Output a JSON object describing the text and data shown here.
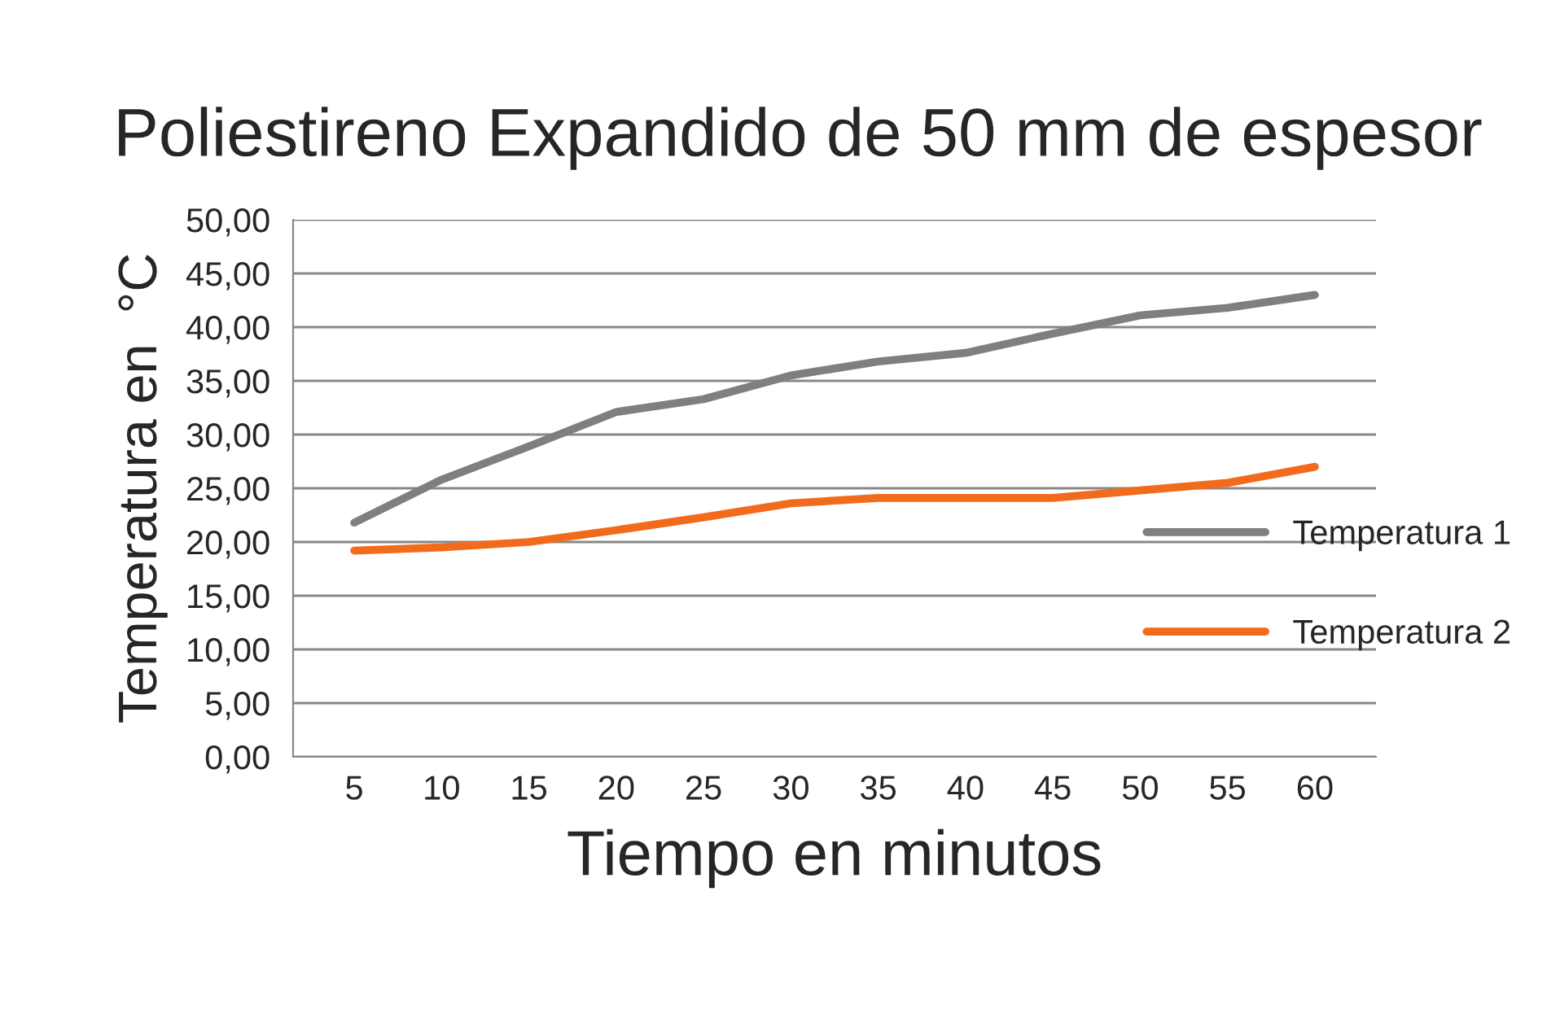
{
  "chart_data": {
    "type": "line",
    "title": "Poliestireno Expandido de 50 mm de espesor",
    "xlabel": "Tiempo en minutos",
    "ylabel": "Temperatura en  °C",
    "categories": [
      "5",
      "10",
      "15",
      "20",
      "25",
      "30",
      "35",
      "40",
      "45",
      "50",
      "55",
      "60"
    ],
    "series": [
      {
        "name": "Temperatura 1",
        "color": "#7f7f7f",
        "values": [
          21.8,
          25.8,
          28.9,
          32.1,
          33.3,
          35.5,
          36.8,
          37.6,
          39.4,
          41.1,
          41.8,
          43.0
        ]
      },
      {
        "name": "Temperatura 2",
        "color": "#f26b1d",
        "values": [
          19.2,
          19.5,
          20.0,
          21.1,
          22.3,
          23.6,
          24.1,
          24.1,
          24.1,
          24.8,
          25.5,
          27.0
        ]
      }
    ],
    "ylim": [
      0,
      50
    ],
    "yticks": [
      {
        "value": 0,
        "label": "0,00"
      },
      {
        "value": 5,
        "label": "5,00"
      },
      {
        "value": 10,
        "label": "10,00"
      },
      {
        "value": 15,
        "label": "15,00"
      },
      {
        "value": 20,
        "label": "20,00"
      },
      {
        "value": 25,
        "label": "25,00"
      },
      {
        "value": 30,
        "label": "30,00"
      },
      {
        "value": 35,
        "label": "35,00"
      },
      {
        "value": 40,
        "label": "40,00"
      },
      {
        "value": 45,
        "label": "45,00"
      },
      {
        "value": 50,
        "label": "50,00"
      }
    ],
    "grid": "y",
    "legend": "right",
    "marker": "none",
    "line_style": "solid"
  }
}
